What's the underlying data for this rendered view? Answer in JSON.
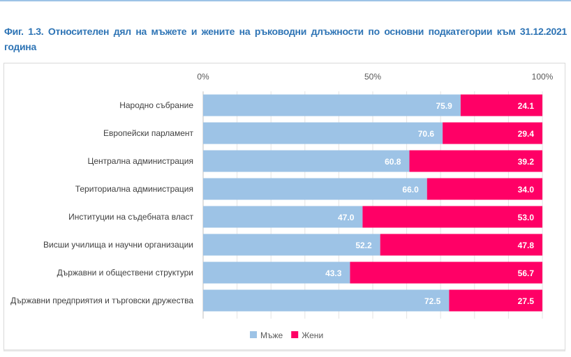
{
  "title": "Фиг. 1.3. Относителен дял на мъжете и жените на ръководни длъжности по основни подкатегории към 31.12.2021 година",
  "chart_data": {
    "type": "bar",
    "orientation": "horizontal",
    "stacked": "percent",
    "categories": [
      "Народно събрание",
      "Европейски парламент",
      "Централна администрация",
      "Териториална администрация",
      "Институции на съдебната власт",
      "Висши училища и научни организации",
      "Държавни и обществени структури",
      "Държавни предприятия и търговски дружества"
    ],
    "series": [
      {
        "name": "Мъже",
        "color": "#9dc3e6",
        "values": [
          75.9,
          70.6,
          60.8,
          66.0,
          47.0,
          52.2,
          43.3,
          72.5
        ],
        "labels": [
          "75.9",
          "70.6",
          "60.8",
          "66.0",
          "47.0",
          "52.2",
          "43.3",
          "72.5"
        ]
      },
      {
        "name": "Жени",
        "color": "#ff0066",
        "values": [
          24.1,
          29.4,
          39.2,
          34.0,
          53.0,
          47.8,
          56.7,
          27.5
        ],
        "labels": [
          "24.1",
          "29.4",
          "39.2",
          "34.0",
          "53.0",
          "47.8",
          "56.7",
          "27.5"
        ]
      }
    ],
    "x_ticks": [
      "0%",
      "50%",
      "100%"
    ],
    "xlim": [
      0,
      100
    ],
    "axis_position": "top",
    "legend": "bottom"
  }
}
